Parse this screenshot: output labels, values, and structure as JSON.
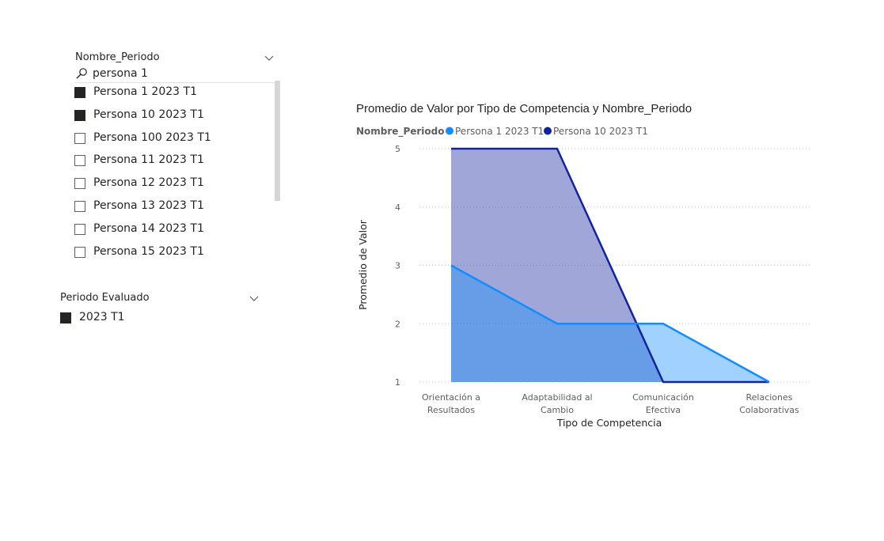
{
  "slicer_nombre_periodo": {
    "title": "Nombre_Periodo",
    "search_value": "persona 1",
    "items": [
      {
        "label": "Persona 1 2023 T1",
        "checked": true
      },
      {
        "label": "Persona 10 2023 T1",
        "checked": true
      },
      {
        "label": "Persona 100 2023 T1",
        "checked": false
      },
      {
        "label": "Persona 11 2023 T1",
        "checked": false
      },
      {
        "label": "Persona 12 2023 T1",
        "checked": false
      },
      {
        "label": "Persona 13 2023 T1",
        "checked": false
      },
      {
        "label": "Persona 14 2023 T1",
        "checked": false
      },
      {
        "label": "Persona 15 2023 T1",
        "checked": false
      }
    ]
  },
  "slicer_periodo_evaluado": {
    "title": "Periodo Evaluado",
    "items": [
      {
        "label": "2023 T1",
        "checked": true
      }
    ]
  },
  "chart_data": {
    "type": "area",
    "title": "Promedio de Valor por Tipo de Competencia y Nombre_Periodo",
    "legend_title": "Nombre_Periodo",
    "legend_position": "top-left",
    "xlabel": "Tipo de Competencia",
    "ylabel": "Promedio de Valor",
    "categories": [
      [
        "Orientación a",
        "Resultados"
      ],
      [
        "Adaptabilidad al",
        "Cambio"
      ],
      [
        "Comunicación",
        "Efectiva"
      ],
      [
        "Relaciones",
        "Colaborativas"
      ]
    ],
    "yticks": [
      1,
      2,
      3,
      4,
      5
    ],
    "ylim": [
      1,
      5
    ],
    "grid": true,
    "series": [
      {
        "name": "Persona 1 2023 T1",
        "values": [
          3,
          2,
          2,
          1
        ],
        "color": "#118dff",
        "fill": "#118dff",
        "fill_opacity": 0.4
      },
      {
        "name": "Persona 10 2023 T1",
        "values": [
          5,
          5,
          1,
          1
        ],
        "color": "#12239e",
        "fill": "#12239e",
        "fill_opacity": 0.4
      }
    ]
  }
}
